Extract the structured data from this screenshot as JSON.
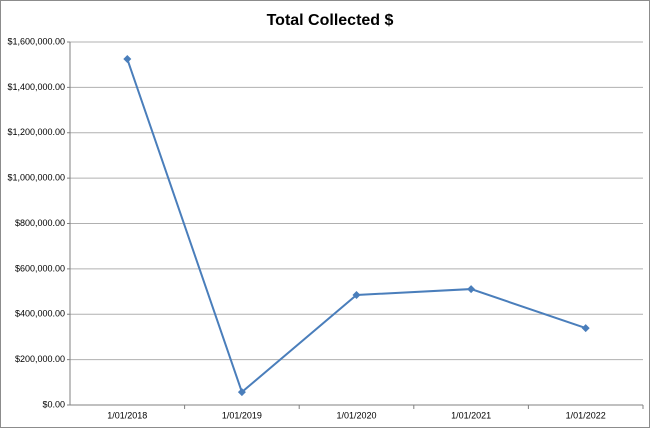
{
  "chart_data": {
    "type": "line",
    "title": "Total Collected $",
    "categories": [
      "1/01/2018",
      "1/01/2019",
      "1/01/2020",
      "1/01/2021",
      "1/01/2022"
    ],
    "series": [
      {
        "name": "Total Collected $",
        "color": "#4a7ebb",
        "values": [
          1525000,
          57000,
          485000,
          511000,
          339000
        ]
      }
    ],
    "ylim": [
      0,
      1600000
    ],
    "yticks": [
      {
        "value": 0,
        "label": "$0.00"
      },
      {
        "value": 200000,
        "label": "$200,000.00"
      },
      {
        "value": 400000,
        "label": "$400,000.00"
      },
      {
        "value": 600000,
        "label": "$600,000.00"
      },
      {
        "value": 800000,
        "label": "$800,000.00"
      },
      {
        "value": 1000000,
        "label": "$1,000,000.00"
      },
      {
        "value": 1200000,
        "label": "$1,200,000.00"
      },
      {
        "value": 1400000,
        "label": "$1,400,000.00"
      },
      {
        "value": 1600000,
        "label": "$1,600,000.00"
      }
    ],
    "grid": true
  }
}
